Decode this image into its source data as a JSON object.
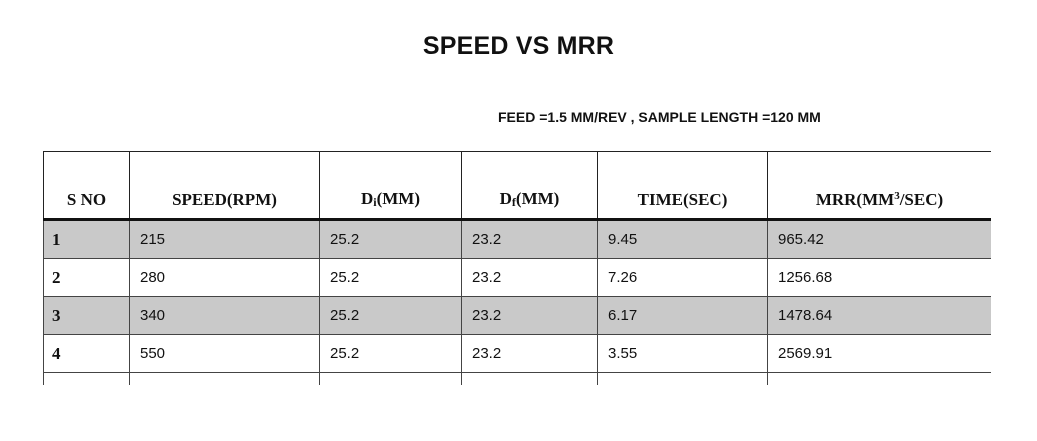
{
  "document": {
    "title": "SPEED VS MRR",
    "subtitle": "FEED =1.5 MM/REV , SAMPLE LENGTH =120 MM"
  },
  "table": {
    "headers": [
      {
        "text": "S NO"
      },
      {
        "text": "SPEED(RPM)"
      },
      {
        "pre": "D",
        "sub": "i",
        "post": "(MM)"
      },
      {
        "pre": "D",
        "sub": "f",
        "post": "(MM)"
      },
      {
        "text": "TIME(SEC)"
      },
      {
        "pre": "MRR(MM",
        "sup": "3",
        "post": "/SEC)"
      }
    ],
    "rows": [
      [
        "1",
        "215",
        "25.2",
        "23.2",
        "9.45",
        "965.42"
      ],
      [
        "2",
        "280",
        "25.2",
        "23.2",
        "7.26",
        "1256.68"
      ],
      [
        "3",
        "340",
        "25.2",
        "23.2",
        "6.17",
        "1478.64"
      ],
      [
        "4",
        "550",
        "25.2",
        "23.2",
        "3.55",
        "2569.91"
      ]
    ],
    "shaded_row_color": "#c9c9c9"
  }
}
